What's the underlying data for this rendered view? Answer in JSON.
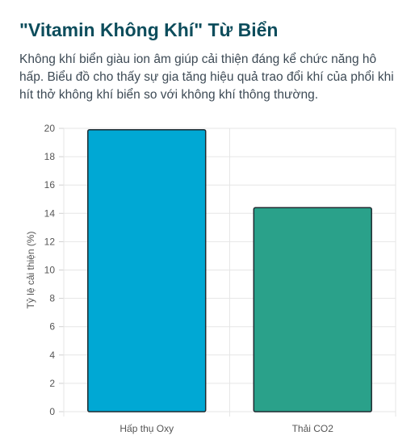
{
  "header": {
    "title": "\"Vitamin Không Khí\" Từ Biển",
    "description": "Không khí biển giàu ion âm giúp cải thiện đáng kể chức năng hô hấp. Biểu đồ cho thấy sự gia tăng hiệu quả trao đổi khí của phổi khi hít thở không khí biển so với không khí thông thường."
  },
  "chart_data": {
    "type": "bar",
    "categories": [
      "Hấp thụ Oxy",
      "Thải CO2"
    ],
    "values": [
      19.9,
      14.4
    ],
    "colors": [
      "#00a8d4",
      "#2aa18a"
    ],
    "border_color": "#1e2a30",
    "ylabel": "Tỷ lệ cải thiện (%)",
    "xlabel": "",
    "ylim": [
      0,
      20
    ],
    "yticks": [
      0,
      2,
      4,
      6,
      8,
      10,
      12,
      14,
      16,
      18,
      20
    ],
    "grid": true,
    "legend": "none"
  }
}
